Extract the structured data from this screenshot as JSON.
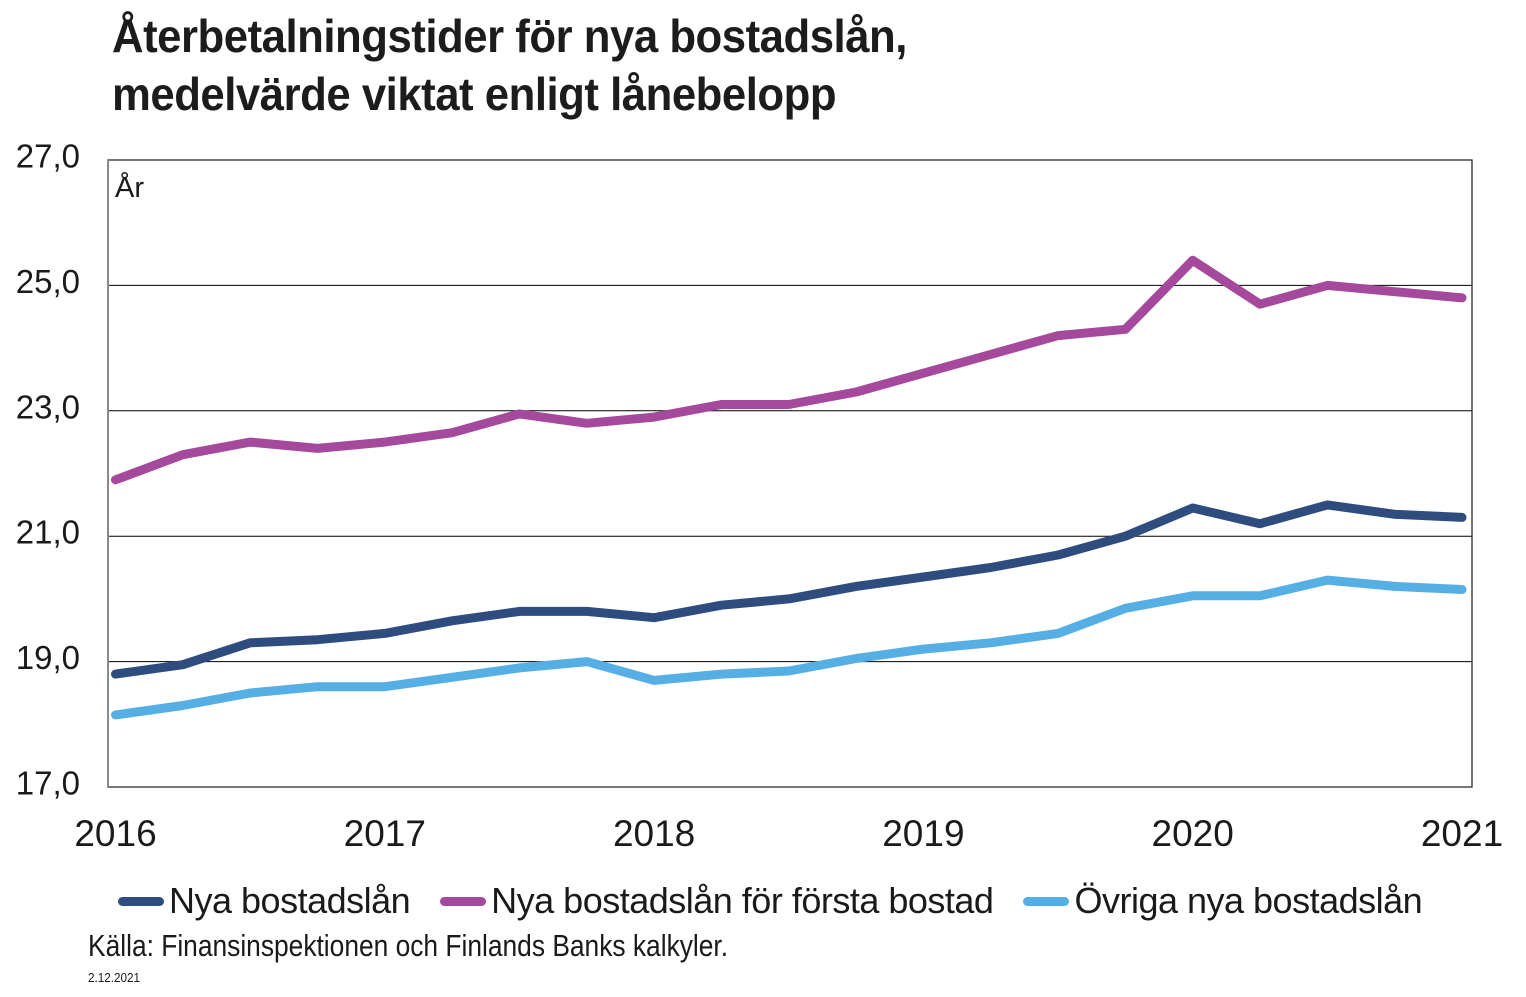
{
  "title": {
    "line1": "Återbetalningstider för nya bostadslån,",
    "line2": "medelvärde viktat enligt lånebelopp"
  },
  "unit_label": "År",
  "source": "Källa: Finansinspektionen och Finlands Banks kalkyler.",
  "date": "2.12.2021",
  "chart_data": {
    "type": "line",
    "title": "Återbetalningstider för nya bostadslån, medelvärde viktat enligt lånebelopp",
    "ylabel": "År",
    "xlabel": "",
    "ylim": [
      17.0,
      27.0
    ],
    "xlim": [
      2016.0,
      2021.0
    ],
    "grid": "horizontal",
    "gridlines_at": [
      19.0,
      21.0,
      23.0,
      25.0
    ],
    "y_tick_labels": [
      "27,0",
      "25,0",
      "23,0",
      "21,0",
      "19,0",
      "17,0"
    ],
    "x_tick_labels": [
      "2016",
      "2017",
      "2018",
      "2019",
      "2020",
      "2021"
    ],
    "x_frequency": "quarterly",
    "x": [
      2016.0,
      2016.25,
      2016.5,
      2016.75,
      2017.0,
      2017.25,
      2017.5,
      2017.75,
      2018.0,
      2018.25,
      2018.5,
      2018.75,
      2019.0,
      2019.25,
      2019.5,
      2019.75,
      2020.0,
      2020.25,
      2020.5,
      2020.75,
      2021.0
    ],
    "legend_position": "bottom",
    "series": [
      {
        "name": "Nya bostadslån",
        "color": "#2E4D7E",
        "values": [
          18.8,
          18.95,
          19.3,
          19.35,
          19.45,
          19.65,
          19.8,
          19.8,
          19.7,
          19.9,
          20.0,
          20.2,
          20.35,
          20.5,
          20.7,
          21.0,
          21.45,
          21.2,
          21.5,
          21.35,
          21.3
        ]
      },
      {
        "name": "Nya bostadslån för första bostad",
        "color": "#A4499B",
        "values": [
          21.9,
          22.3,
          22.5,
          22.4,
          22.5,
          22.65,
          22.95,
          22.8,
          22.9,
          23.1,
          23.1,
          23.3,
          23.6,
          23.9,
          24.2,
          24.3,
          25.4,
          24.7,
          25.0,
          24.9,
          24.8
        ]
      },
      {
        "name": "Övriga nya bostadslån",
        "color": "#56AFE4",
        "values": [
          18.15,
          18.3,
          18.5,
          18.6,
          18.6,
          18.75,
          18.9,
          19.0,
          18.7,
          18.8,
          18.85,
          19.05,
          19.2,
          19.3,
          19.45,
          19.85,
          20.05,
          20.05,
          20.3,
          20.2,
          20.15
        ]
      }
    ]
  }
}
